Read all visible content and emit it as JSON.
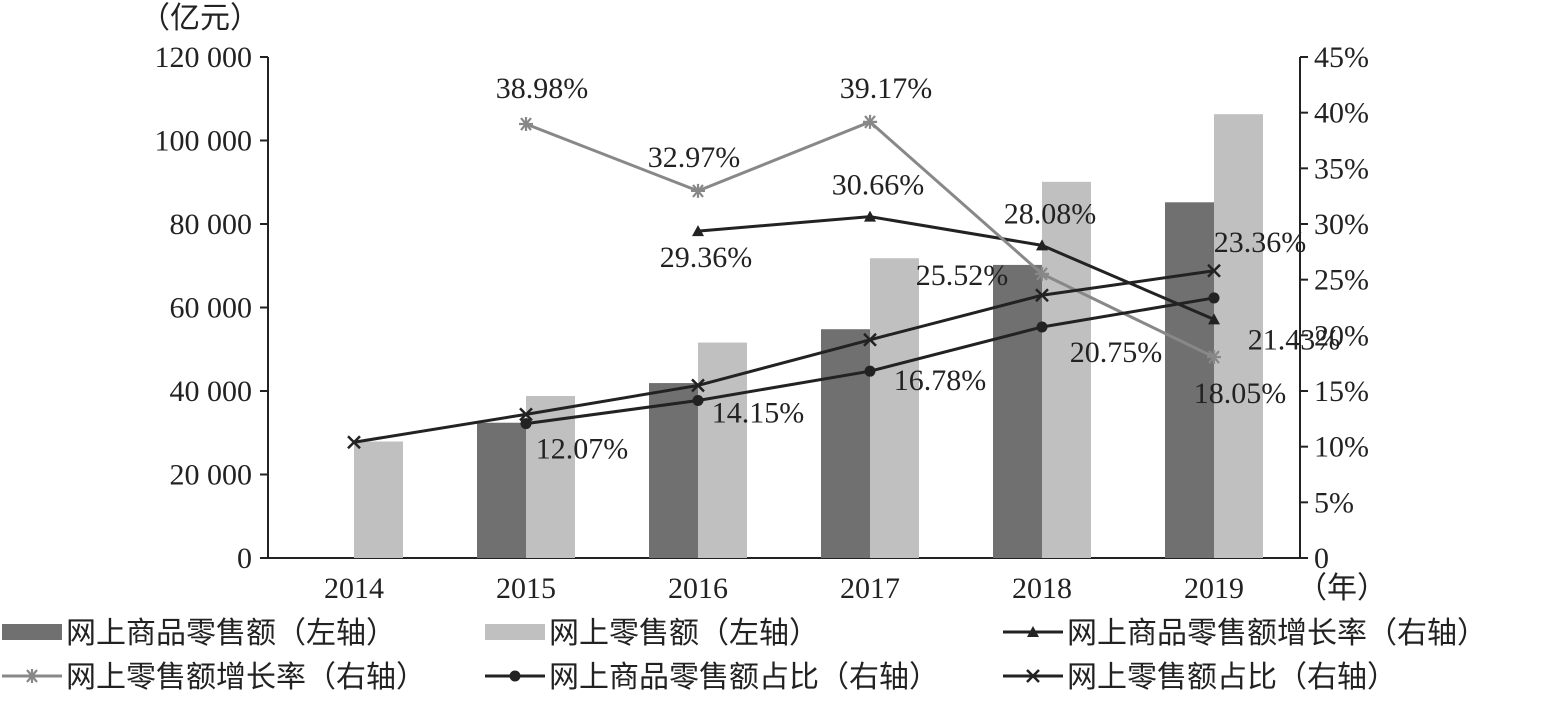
{
  "chart_data": {
    "type": "bar",
    "left_axis_unit": "（亿元）",
    "x_unit": "（年）",
    "categories": [
      "2014",
      "2015",
      "2016",
      "2017",
      "2018",
      "2019"
    ],
    "y_left": {
      "ylim": [
        0,
        120000
      ],
      "ticks": [
        "0",
        "20 000",
        "40 000",
        "60 000",
        "80 000",
        "100 000",
        "120 000"
      ],
      "tick_values": [
        0,
        20000,
        40000,
        60000,
        80000,
        100000,
        120000
      ]
    },
    "y_right": {
      "ylim": [
        0,
        45
      ],
      "ticks": [
        "0",
        "5%",
        "10%",
        "15%",
        "20%",
        "25%",
        "30%",
        "35%",
        "40%",
        "45%"
      ],
      "tick_values": [
        0,
        5,
        10,
        15,
        20,
        25,
        30,
        35,
        40,
        45
      ]
    },
    "grid": false,
    "legend_position": "bottom",
    "bar_series": [
      {
        "name": "网上商品零售额（左轴）",
        "color": "#707070",
        "values": [
          null,
          32400,
          41900,
          54800,
          70200,
          85200
        ]
      },
      {
        "name": "网上零售额（左轴）",
        "color": "#c0c0c0",
        "values": [
          27900,
          38800,
          51600,
          71800,
          90100,
          106300
        ]
      }
    ],
    "line_series": [
      {
        "name": "网上商品零售额增长率（右轴）",
        "color": "#222222",
        "marker": "triangle",
        "values": [
          null,
          null,
          29.36,
          30.66,
          28.08,
          21.43
        ],
        "labels": [
          null,
          null,
          "29.36%",
          "30.66%",
          "28.08%",
          "21.43%"
        ]
      },
      {
        "name": "网上零售额增长率（右轴）",
        "color": "#888888",
        "marker": "asterisk",
        "values": [
          null,
          38.98,
          32.97,
          39.17,
          25.52,
          18.05
        ],
        "labels": [
          null,
          "38.98%",
          "32.97%",
          "39.17%",
          "25.52%",
          "18.05%"
        ]
      },
      {
        "name": "网上商品零售额占比（右轴）",
        "color": "#222222",
        "marker": "dot",
        "values": [
          null,
          12.07,
          14.15,
          16.78,
          20.75,
          23.36
        ],
        "labels": [
          null,
          "12.07%",
          "14.15%",
          "16.78%",
          "20.75%",
          "23.36%"
        ]
      },
      {
        "name": "网上零售额占比（右轴）",
        "color": "#222222",
        "marker": "x",
        "values": [
          10.4,
          12.9,
          15.5,
          19.6,
          23.6,
          25.8
        ],
        "labels": [
          null,
          null,
          null,
          null,
          null,
          null
        ]
      }
    ]
  }
}
